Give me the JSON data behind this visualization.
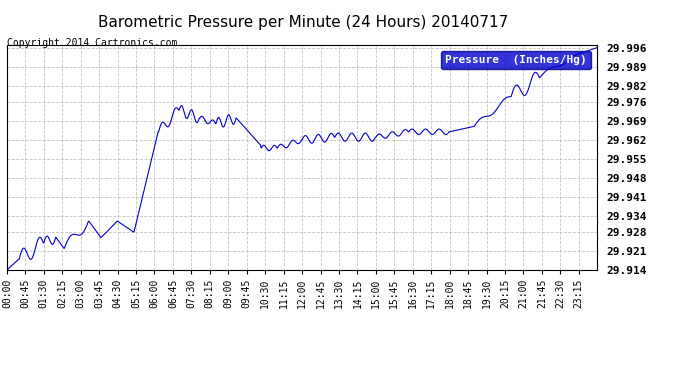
{
  "title": "Barometric Pressure per Minute (24 Hours) 20140717",
  "copyright": "Copyright 2014 Cartronics.com",
  "legend_label": "Pressure  (Inches/Hg)",
  "line_color": "#0000cc",
  "background_color": "#ffffff",
  "plot_bg_color": "#ffffff",
  "grid_color": "#aaaaaa",
  "ylim": [
    29.914,
    29.996
  ],
  "yticks": [
    29.914,
    29.921,
    29.928,
    29.934,
    29.941,
    29.948,
    29.955,
    29.962,
    29.969,
    29.976,
    29.982,
    29.989,
    29.996
  ],
  "xtick_labels": [
    "00:00",
    "00:45",
    "01:30",
    "02:15",
    "03:00",
    "03:45",
    "04:30",
    "05:15",
    "06:00",
    "06:45",
    "07:30",
    "08:15",
    "09:00",
    "09:45",
    "10:30",
    "11:15",
    "12:00",
    "12:45",
    "13:30",
    "14:15",
    "15:00",
    "15:45",
    "16:30",
    "17:15",
    "18:00",
    "18:45",
    "19:30",
    "20:15",
    "21:00",
    "21:45",
    "22:30",
    "23:15"
  ],
  "title_fontsize": 11,
  "copyright_fontsize": 7,
  "legend_fontsize": 8,
  "tick_fontsize": 7
}
